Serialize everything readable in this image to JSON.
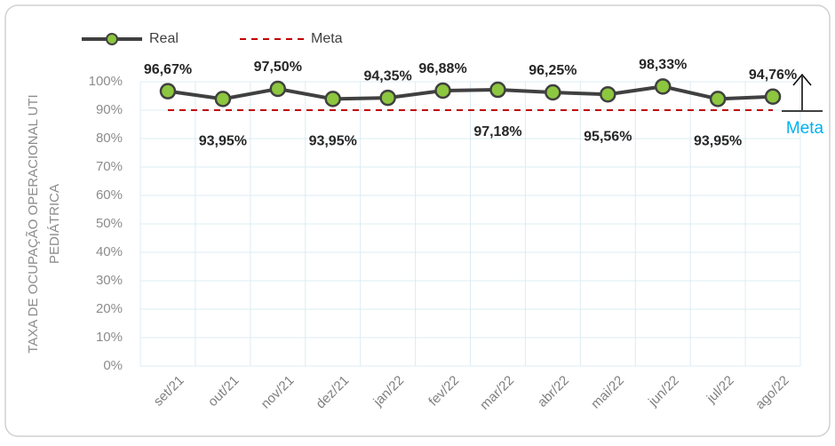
{
  "chart_data": {
    "type": "line",
    "ylabel": [
      "TAXA DE OCUPAÇÃO OPERACIONAL UTI",
      "PEDIÁTRICA"
    ],
    "categories": [
      "set/21",
      "out/21",
      "nov/21",
      "dez/21",
      "jan/22",
      "fev/22",
      "mar/22",
      "abr/22",
      "mai/22",
      "jun/22",
      "jul/22",
      "ago/22"
    ],
    "series": [
      {
        "name": "Real",
        "color": "#404040",
        "marker_color": "#8dc63f",
        "values": [
          96.67,
          93.95,
          97.5,
          93.95,
          94.35,
          96.88,
          97.18,
          96.25,
          95.56,
          98.33,
          93.95,
          94.76
        ],
        "value_labels": [
          "96,67%",
          "93,95%",
          "97,50%",
          "93,95%",
          "94,35%",
          "96,88%",
          "97,18%",
          "96,25%",
          "95,56%",
          "98,33%",
          "93,95%",
          "94,76%"
        ]
      },
      {
        "name": "Meta",
        "color": "#c00000",
        "dashed": true,
        "values": [
          90,
          90,
          90,
          90,
          90,
          90,
          90,
          90,
          90,
          90,
          90,
          90
        ]
      }
    ],
    "annotation": "Meta",
    "ylim": [
      0,
      100
    ],
    "yticks": [
      {
        "value": 0,
        "label": "0%"
      },
      {
        "value": 10,
        "label": "10%"
      },
      {
        "value": 20,
        "label": "20%"
      },
      {
        "value": 30,
        "label": "30%"
      },
      {
        "value": 40,
        "label": "40%"
      },
      {
        "value": 50,
        "label": "50%"
      },
      {
        "value": 60,
        "label": "60%"
      },
      {
        "value": 70,
        "label": "70%"
      },
      {
        "value": 80,
        "label": "80%"
      },
      {
        "value": 90,
        "label": "90%"
      },
      {
        "value": 100,
        "label": "100%"
      }
    ],
    "grid": true,
    "legend": "top"
  }
}
